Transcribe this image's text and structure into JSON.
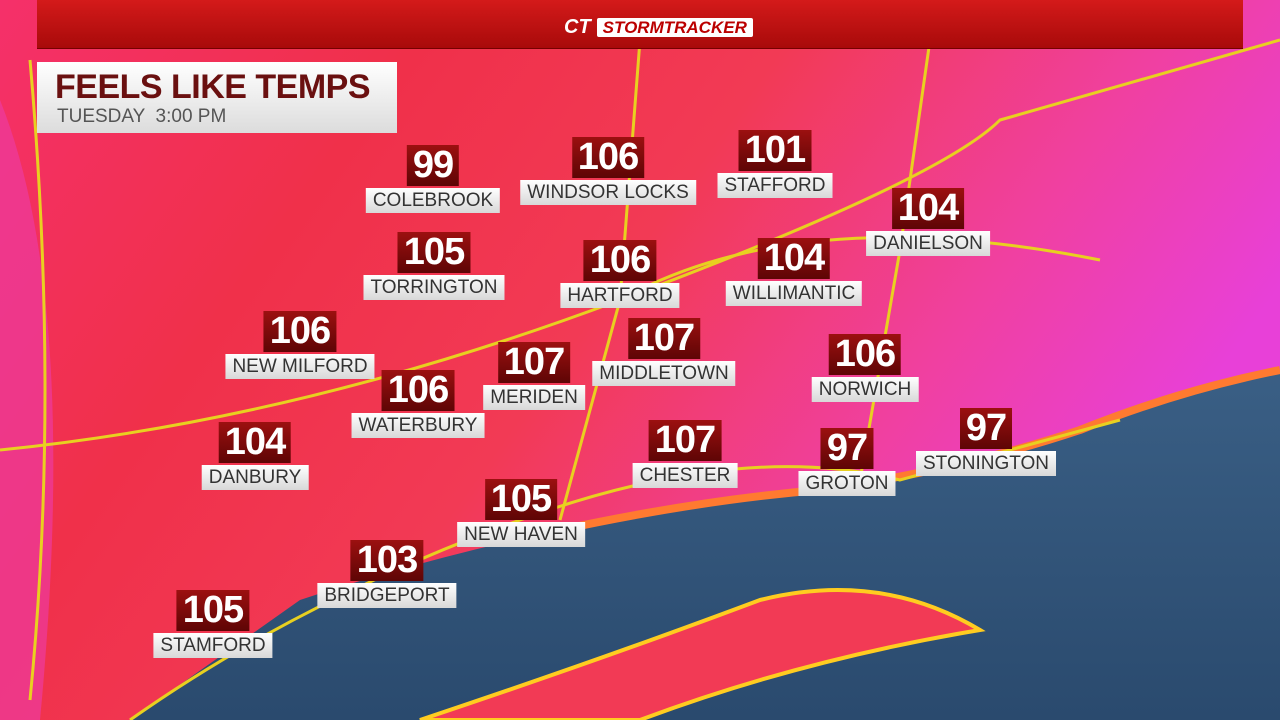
{
  "header": {
    "brand": "CT",
    "product": "STORMTRACKER"
  },
  "title": "FEELS LIKE TEMPS",
  "subtitle": "TUESDAY  3:00 PM",
  "cities": [
    {
      "name": "COLEBROOK",
      "temp": 99
    },
    {
      "name": "WINDSOR LOCKS",
      "temp": 106
    },
    {
      "name": "STAFFORD",
      "temp": 101
    },
    {
      "name": "DANIELSON",
      "temp": 104
    },
    {
      "name": "TORRINGTON",
      "temp": 105
    },
    {
      "name": "HARTFORD",
      "temp": 106
    },
    {
      "name": "WILLIMANTIC",
      "temp": 104
    },
    {
      "name": "NEW MILFORD",
      "temp": 106
    },
    {
      "name": "MERIDEN",
      "temp": 107
    },
    {
      "name": "MIDDLETOWN",
      "temp": 107
    },
    {
      "name": "NORWICH",
      "temp": 106
    },
    {
      "name": "WATERBURY",
      "temp": 106
    },
    {
      "name": "DANBURY",
      "temp": 104
    },
    {
      "name": "CHESTER",
      "temp": 107
    },
    {
      "name": "GROTON",
      "temp": 97
    },
    {
      "name": "STONINGTON",
      "temp": 97
    },
    {
      "name": "NEW HAVEN",
      "temp": 105
    },
    {
      "name": "BRIDGEPORT",
      "temp": 103
    },
    {
      "name": "STAMFORD",
      "temp": 105
    }
  ]
}
